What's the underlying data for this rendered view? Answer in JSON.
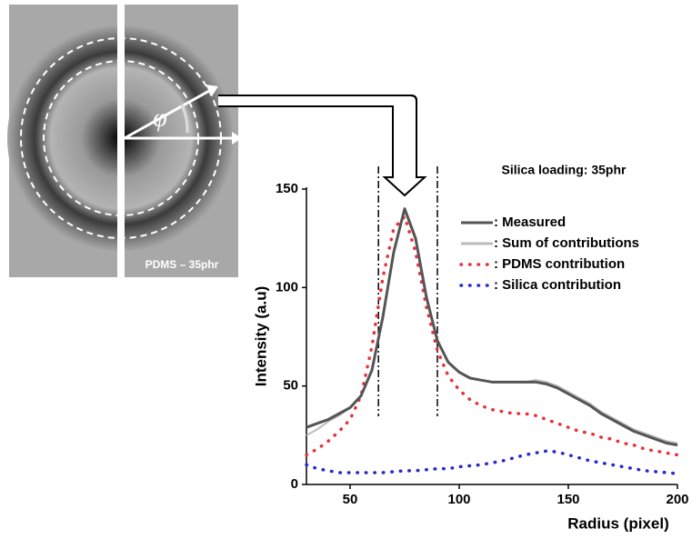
{
  "chart_data": {
    "type": "line",
    "title": "Silica loading: 35phr",
    "image_label": "PDMS – 35phr",
    "angle_symbol": "φ",
    "xlabel": "Radius (pixel)",
    "ylabel": "Intensity (a.u)",
    "x": [
      30,
      35,
      40,
      45,
      50,
      55,
      60,
      65,
      70,
      75,
      80,
      85,
      90,
      95,
      100,
      105,
      110,
      115,
      120,
      125,
      130,
      135,
      140,
      145,
      150,
      155,
      160,
      165,
      170,
      175,
      180,
      185,
      190,
      195,
      200
    ],
    "series": [
      {
        "name": ": Measured",
        "color": "#555555",
        "style": "solid",
        "values": [
          29,
          31,
          33,
          36,
          39,
          45,
          58,
          85,
          118,
          140,
          125,
          95,
          73,
          62,
          57,
          54,
          53,
          52,
          52,
          52,
          52,
          52,
          51,
          49,
          46,
          43,
          40,
          36,
          33,
          30,
          27,
          25,
          23,
          21,
          20
        ]
      },
      {
        "name": ": Sum of contributions",
        "color": "#bbbbbb",
        "style": "solid",
        "values": [
          25,
          28,
          32,
          35,
          39,
          45,
          58,
          86,
          119,
          139,
          124,
          94,
          73,
          62,
          57,
          54,
          53,
          52,
          52,
          52,
          52,
          53,
          52,
          50,
          47,
          44,
          41,
          37,
          34,
          31,
          28,
          26,
          24,
          22,
          21
        ]
      },
      {
        "name": ": PDMS contribution",
        "color": "#e8323c",
        "style": "dotted",
        "values": [
          15,
          18,
          22,
          27,
          33,
          45,
          70,
          105,
          130,
          136,
          118,
          90,
          68,
          55,
          48,
          43,
          40,
          38,
          37,
          36,
          36,
          35,
          33,
          31,
          29,
          27,
          26,
          24,
          23,
          21,
          20,
          18,
          17,
          16,
          15
        ]
      },
      {
        "name": ": Silica contribution",
        "color": "#2a2ac8",
        "style": "dotted",
        "values": [
          10,
          8,
          7,
          6,
          6,
          6,
          6,
          6,
          6.5,
          7,
          7,
          7.5,
          8,
          8,
          9,
          9.5,
          10,
          11,
          12,
          13.5,
          15,
          16,
          17,
          16.5,
          15,
          13.5,
          12,
          11,
          10,
          9,
          8,
          7,
          6.5,
          6,
          5.5
        ]
      }
    ],
    "vlines": [
      63,
      90
    ],
    "xlim": [
      30,
      200
    ],
    "ylim": [
      0,
      150
    ],
    "xticks": [
      50,
      100,
      150,
      200
    ],
    "yticks": [
      0,
      50,
      100,
      150
    ]
  }
}
